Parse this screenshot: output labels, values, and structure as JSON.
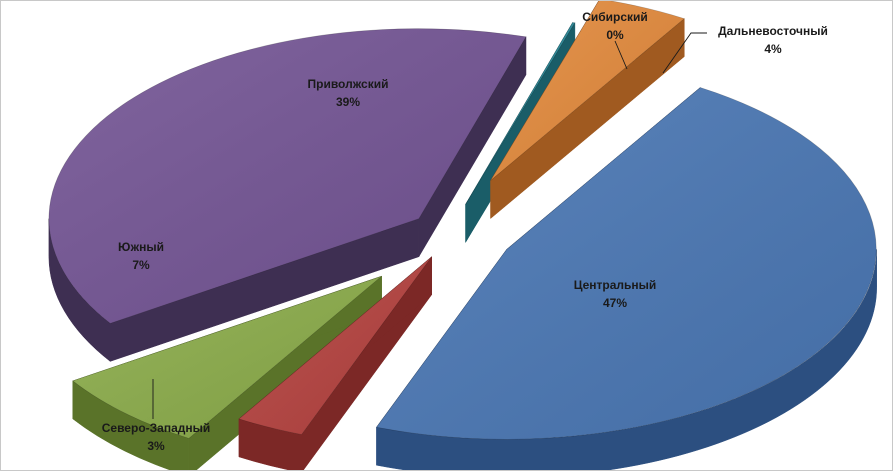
{
  "chart_data": {
    "type": "pie",
    "style": "exploded 3d pie",
    "title": "",
    "legend": "none",
    "slices": [
      {
        "label": "Центральный",
        "value": 47,
        "pct_label": "47%",
        "color": "#4a77b4",
        "side_color": "#2c4f80"
      },
      {
        "label": "Северо-Западный",
        "value": 3,
        "pct_label": "3%",
        "color": "#b5423f",
        "side_color": "#7c2826"
      },
      {
        "label": "Южный",
        "value": 7,
        "pct_label": "7%",
        "color": "#8bac4a",
        "side_color": "#5a7329"
      },
      {
        "label": "Приволжский",
        "value": 39,
        "pct_label": "39%",
        "color": "#735494",
        "side_color": "#3e2f52"
      },
      {
        "label": "Сибирский",
        "value": 0,
        "pct_label": "0%",
        "color": "#2a8a9a",
        "side_color": "#1a5d68"
      },
      {
        "label": "Дальневосточный",
        "value": 4,
        "pct_label": "4%",
        "color": "#e38a3c",
        "side_color": "#a05a20"
      }
    ]
  }
}
